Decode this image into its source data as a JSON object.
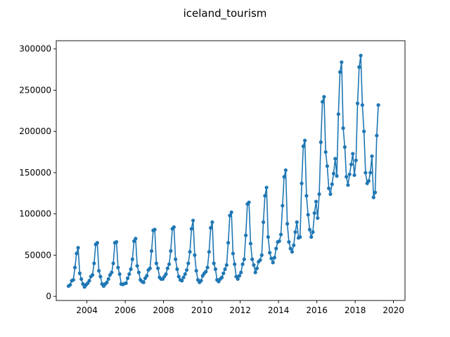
{
  "chart_data": {
    "type": "line",
    "title": "iceland_tourism",
    "xlabel": "",
    "ylabel": "",
    "x_axis": "date (monthly)",
    "xlim": [
      2002.4,
      2020.6
    ],
    "ylim": [
      -5000,
      310000
    ],
    "xticks": [
      2004,
      2006,
      2008,
      2010,
      2012,
      2014,
      2016,
      2018,
      2020
    ],
    "xtick_labels": [
      "2004",
      "2006",
      "2008",
      "2010",
      "2012",
      "2014",
      "2016",
      "2018",
      "2020"
    ],
    "yticks": [
      0,
      50000,
      100000,
      150000,
      200000,
      250000,
      300000
    ],
    "ytick_labels": [
      "0",
      "50000",
      "100000",
      "150000",
      "200000",
      "250000",
      "300000"
    ],
    "grid": false,
    "legend": "none",
    "color": "#1f77b4",
    "marker": "circle",
    "series": [
      {
        "start": "2003-01",
        "frequency": "monthly",
        "values": [
          12500,
          14000,
          19000,
          20000,
          35000,
          52000,
          59000,
          28000,
          21000,
          15000,
          11500,
          14000,
          16000,
          19000,
          24000,
          26000,
          40000,
          63000,
          65000,
          31000,
          24000,
          15000,
          12500,
          15000,
          17000,
          21000,
          26000,
          29000,
          40000,
          65000,
          66000,
          35000,
          27000,
          15000,
          14500,
          15500,
          16000,
          22000,
          27000,
          33000,
          45000,
          67000,
          70000,
          37000,
          29000,
          20000,
          18000,
          17000,
          22000,
          25000,
          32000,
          34000,
          55000,
          80000,
          81000,
          40000,
          34000,
          23000,
          21000,
          21000,
          24000,
          27000,
          34000,
          39000,
          55000,
          82000,
          84000,
          45000,
          33000,
          24000,
          20000,
          19000,
          23000,
          27000,
          32000,
          40000,
          54000,
          82000,
          92000,
          50000,
          31000,
          20000,
          17000,
          19000,
          25000,
          28000,
          30000,
          35000,
          54000,
          83000,
          90000,
          40000,
          33000,
          20000,
          18000,
          21000,
          23000,
          28000,
          33000,
          38000,
          65000,
          98000,
          102000,
          52000,
          39000,
          24000,
          21000,
          25000,
          29000,
          39000,
          45000,
          74000,
          112000,
          114000,
          64000,
          45000,
          38000,
          29000,
          34000,
          42000,
          44000,
          50000,
          90000,
          122000,
          132000,
          72000,
          53000,
          46000,
          41000,
          47000,
          58000,
          66000,
          67000,
          75000,
          110000,
          145000,
          153000,
          88000,
          66000,
          58000,
          54000,
          62000,
          78000,
          90000,
          71000,
          72000,
          137000,
          182000,
          189000,
          122000,
          99000,
          81000,
          72000,
          78000,
          101000,
          115000,
          95000,
          124000,
          187000,
          236000,
          242000,
          175000,
          158000,
          131000,
          124000,
          136000,
          149000,
          167000,
          146000,
          221000,
          272000,
          284000,
          204000,
          181000,
          145000,
          135000,
          148000,
          160000,
          173000,
          147000,
          165000,
          234000,
          278000,
          292000,
          232000,
          200000,
          150000,
          137000,
          140000,
          150000,
          170000,
          120000,
          126000,
          195000,
          232000
        ]
      }
    ]
  }
}
